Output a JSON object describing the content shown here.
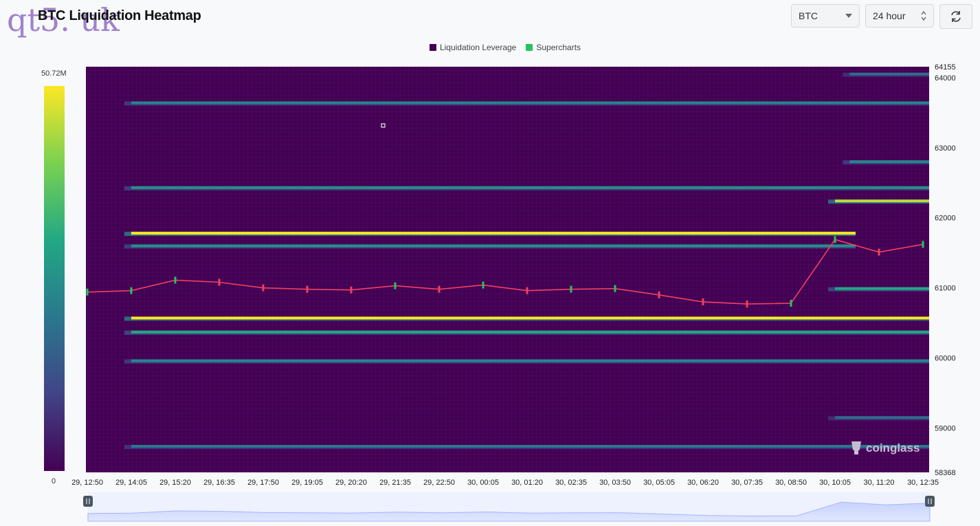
{
  "header": {
    "title": "BTC Liquidation Heatmap",
    "watermark": "qt5. uk"
  },
  "controls": {
    "symbol_value": "BTC",
    "range_value": "24 hour"
  },
  "legend": [
    {
      "label": "Liquidation Leverage",
      "color": "#440154"
    },
    {
      "label": "Supercharts",
      "color": "#22c55e"
    }
  ],
  "colorbar": {
    "max_label": "50.72M",
    "min_label": "0"
  },
  "branding": {
    "logo_text": "coinglass"
  },
  "chart_data": {
    "type": "heatmap",
    "title": "BTC Liquidation Heatmap",
    "ylim": [
      58368,
      64155
    ],
    "y_ticks": [
      "64155",
      "64000",
      "63000",
      "62000",
      "61000",
      "60000",
      "59000",
      "58368"
    ],
    "x_ticks": [
      "29, 12:50",
      "29, 14:05",
      "29, 15:20",
      "29, 16:35",
      "29, 17:50",
      "29, 19:05",
      "29, 20:20",
      "29, 21:35",
      "29, 22:50",
      "30, 00:05",
      "30, 01:20",
      "30, 02:35",
      "30, 03:50",
      "30, 05:05",
      "30, 06:20",
      "30, 07:35",
      "30, 08:50",
      "30, 10:05",
      "30, 11:20",
      "30, 12:35"
    ],
    "colorscale": {
      "min": 0,
      "max": "50.72M"
    },
    "liquidation_bands": [
      {
        "price": 63640,
        "start": "29, 14:05",
        "end": "30, 12:35",
        "intensity": 0.45
      },
      {
        "price": 64050,
        "start": "30, 10:30",
        "end": "30, 12:35",
        "intensity": 0.35
      },
      {
        "price": 62800,
        "start": "30, 10:30",
        "end": "30, 12:35",
        "intensity": 0.45
      },
      {
        "price": 62430,
        "start": "29, 14:05",
        "end": "30, 12:35",
        "intensity": 0.5
      },
      {
        "price": 62240,
        "start": "30, 10:05",
        "end": "30, 12:35",
        "intensity": 0.9
      },
      {
        "price": 61780,
        "start": "29, 14:05",
        "end": "30, 10:05",
        "intensity": 1.0
      },
      {
        "price": 61600,
        "start": "29, 14:05",
        "end": "30, 10:05",
        "intensity": 0.5
      },
      {
        "price": 60570,
        "start": "29, 14:05",
        "end": "30, 12:35",
        "intensity": 1.0
      },
      {
        "price": 60370,
        "start": "29, 14:05",
        "end": "30, 12:35",
        "intensity": 0.6
      },
      {
        "price": 60990,
        "start": "30, 10:05",
        "end": "30, 12:35",
        "intensity": 0.6
      },
      {
        "price": 59960,
        "start": "29, 14:05",
        "end": "30, 12:35",
        "intensity": 0.45
      },
      {
        "price": 59150,
        "start": "30, 10:05",
        "end": "30, 12:35",
        "intensity": 0.35
      },
      {
        "price": 58740,
        "start": "29, 14:05",
        "end": "30, 12:35",
        "intensity": 0.4
      }
    ],
    "price_series": {
      "name": "Supercharts",
      "x": [
        "29, 12:50",
        "29, 14:05",
        "29, 15:20",
        "29, 16:35",
        "29, 17:50",
        "29, 19:05",
        "29, 20:20",
        "29, 21:35",
        "29, 22:50",
        "30, 00:05",
        "30, 01:20",
        "30, 02:35",
        "30, 03:50",
        "30, 05:05",
        "30, 06:20",
        "30, 07:35",
        "30, 08:50",
        "30, 10:05",
        "30, 11:20",
        "30, 12:35"
      ],
      "close": [
        60940,
        60960,
        61110,
        61080,
        61000,
        60980,
        60970,
        61030,
        60980,
        61040,
        60960,
        60980,
        60990,
        60900,
        60800,
        60770,
        60780,
        61690,
        61510,
        61620
      ]
    }
  }
}
